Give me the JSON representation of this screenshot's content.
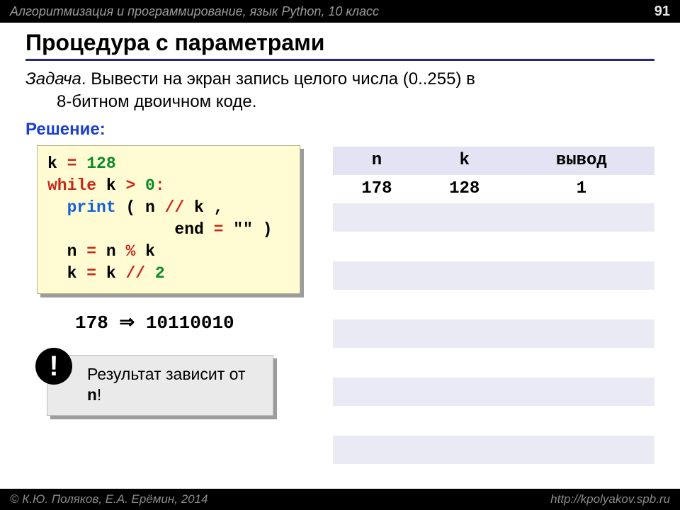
{
  "header": {
    "course": "Алгоритмизация и программирование, язык Python, 10 класс",
    "page": "91"
  },
  "footer": {
    "authors": "© К.Ю. Поляков, Е.А. Ерёмин, 2014",
    "url": "http://kpolyakov.spb.ru"
  },
  "title": "Процедура с параметрами",
  "task": {
    "label": "Задача",
    "line1": ". Вывести на экран запись целого числа (0..255) в",
    "line2": "8-битном двоичном коде."
  },
  "solution_label": "Решение:",
  "code": {
    "l1a": "k ",
    "l1b": "=",
    "l1c": " 128",
    "l2a": "while",
    "l2b": " k ",
    "l2c": ">",
    "l2d": " 0",
    "l2e": ":",
    "l3a": "  ",
    "l3b": "print",
    "l3c": " ( n ",
    "l3d": "//",
    "l3e": " k ,",
    "l4a": "             end ",
    "l4b": "=",
    "l4c": " \"\" )",
    "l5a": "  n ",
    "l5b": "=",
    "l5c": " n ",
    "l5d": "%",
    "l5e": " k",
    "l6a": "  k ",
    "l6b": "=",
    "l6c": " k ",
    "l6d": "//",
    "l6e": " 2"
  },
  "example": {
    "input": "178",
    "arrow": "⇒",
    "output": "10110010"
  },
  "note": {
    "badge": "!",
    "text_a": "Результат зависит от ",
    "text_b": "n",
    "text_c": "!"
  },
  "table": {
    "headers": [
      "n",
      "k",
      "вывод"
    ],
    "row": [
      "178",
      "128",
      "1"
    ]
  }
}
